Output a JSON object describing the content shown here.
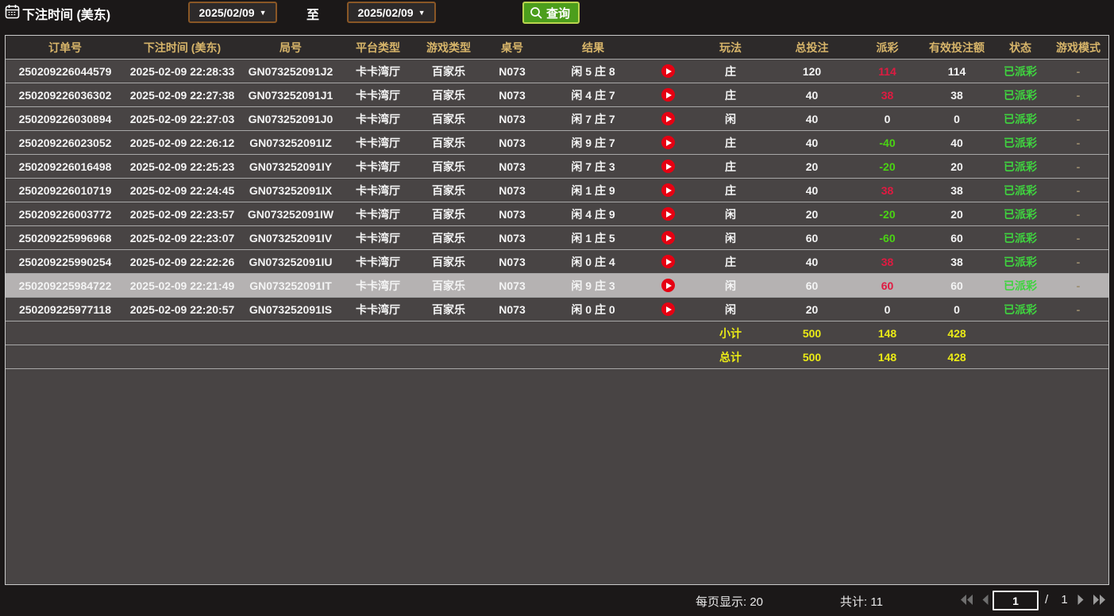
{
  "toolbar": {
    "label": "下注时间 (美东)",
    "date_from": "2025/02/09",
    "to_label": "至",
    "date_to": "2025/02/09",
    "search_label": "查询"
  },
  "table": {
    "headers": [
      "订单号",
      "下注时间 (美东)",
      "局号",
      "平台类型",
      "游戏类型",
      "桌号",
      "结果",
      "",
      "玩法",
      "总投注",
      "派彩",
      "有效投注额",
      "状态",
      "游戏模式"
    ],
    "rows": [
      {
        "order": "250209226044579",
        "time": "2025-02-09 22:28:33",
        "game_no": "GN073252091J2",
        "platform": "卡卡湾厅",
        "game_type": "百家乐",
        "table_no": "N073",
        "result": "闲 5 庄 8",
        "method": "庄",
        "total_bet": "120",
        "payout": "114",
        "payout_tone": "win",
        "valid_bet": "114",
        "status": "已派彩",
        "mode": "-",
        "highlight": false
      },
      {
        "order": "250209226036302",
        "time": "2025-02-09 22:27:38",
        "game_no": "GN073252091J1",
        "platform": "卡卡湾厅",
        "game_type": "百家乐",
        "table_no": "N073",
        "result": "闲 4 庄 7",
        "method": "庄",
        "total_bet": "40",
        "payout": "38",
        "payout_tone": "win",
        "valid_bet": "38",
        "status": "已派彩",
        "mode": "-",
        "highlight": false
      },
      {
        "order": "250209226030894",
        "time": "2025-02-09 22:27:03",
        "game_no": "GN073252091J0",
        "platform": "卡卡湾厅",
        "game_type": "百家乐",
        "table_no": "N073",
        "result": "闲 7 庄 7",
        "method": "闲",
        "total_bet": "40",
        "payout": "0",
        "payout_tone": "even",
        "valid_bet": "0",
        "status": "已派彩",
        "mode": "-",
        "highlight": false
      },
      {
        "order": "250209226023052",
        "time": "2025-02-09 22:26:12",
        "game_no": "GN073252091IZ",
        "platform": "卡卡湾厅",
        "game_type": "百家乐",
        "table_no": "N073",
        "result": "闲 9 庄 7",
        "method": "庄",
        "total_bet": "40",
        "payout": "-40",
        "payout_tone": "loss",
        "valid_bet": "40",
        "status": "已派彩",
        "mode": "-",
        "highlight": false
      },
      {
        "order": "250209226016498",
        "time": "2025-02-09 22:25:23",
        "game_no": "GN073252091IY",
        "platform": "卡卡湾厅",
        "game_type": "百家乐",
        "table_no": "N073",
        "result": "闲 7 庄 3",
        "method": "庄",
        "total_bet": "20",
        "payout": "-20",
        "payout_tone": "loss",
        "valid_bet": "20",
        "status": "已派彩",
        "mode": "-",
        "highlight": false
      },
      {
        "order": "250209226010719",
        "time": "2025-02-09 22:24:45",
        "game_no": "GN073252091IX",
        "platform": "卡卡湾厅",
        "game_type": "百家乐",
        "table_no": "N073",
        "result": "闲 1 庄 9",
        "method": "庄",
        "total_bet": "40",
        "payout": "38",
        "payout_tone": "win",
        "valid_bet": "38",
        "status": "已派彩",
        "mode": "-",
        "highlight": false
      },
      {
        "order": "250209226003772",
        "time": "2025-02-09 22:23:57",
        "game_no": "GN073252091IW",
        "platform": "卡卡湾厅",
        "game_type": "百家乐",
        "table_no": "N073",
        "result": "闲 4 庄 9",
        "method": "闲",
        "total_bet": "20",
        "payout": "-20",
        "payout_tone": "loss",
        "valid_bet": "20",
        "status": "已派彩",
        "mode": "-",
        "highlight": false
      },
      {
        "order": "250209225996968",
        "time": "2025-02-09 22:23:07",
        "game_no": "GN073252091IV",
        "platform": "卡卡湾厅",
        "game_type": "百家乐",
        "table_no": "N073",
        "result": "闲 1 庄 5",
        "method": "闲",
        "total_bet": "60",
        "payout": "-60",
        "payout_tone": "loss",
        "valid_bet": "60",
        "status": "已派彩",
        "mode": "-",
        "highlight": false
      },
      {
        "order": "250209225990254",
        "time": "2025-02-09 22:22:26",
        "game_no": "GN073252091IU",
        "platform": "卡卡湾厅",
        "game_type": "百家乐",
        "table_no": "N073",
        "result": "闲 0 庄 4",
        "method": "庄",
        "total_bet": "40",
        "payout": "38",
        "payout_tone": "win",
        "valid_bet": "38",
        "status": "已派彩",
        "mode": "-",
        "highlight": false
      },
      {
        "order": "250209225984722",
        "time": "2025-02-09 22:21:49",
        "game_no": "GN073252091IT",
        "platform": "卡卡湾厅",
        "game_type": "百家乐",
        "table_no": "N073",
        "result": "闲 9 庄 3",
        "method": "闲",
        "total_bet": "60",
        "payout": "60",
        "payout_tone": "win",
        "valid_bet": "60",
        "status": "已派彩",
        "mode": "-",
        "highlight": true
      },
      {
        "order": "250209225977118",
        "time": "2025-02-09 22:20:57",
        "game_no": "GN073252091IS",
        "platform": "卡卡湾厅",
        "game_type": "百家乐",
        "table_no": "N073",
        "result": "闲 0 庄 0",
        "method": "闲",
        "total_bet": "20",
        "payout": "0",
        "payout_tone": "even",
        "valid_bet": "0",
        "status": "已派彩",
        "mode": "-",
        "highlight": false
      }
    ],
    "subtotal": {
      "label": "小计",
      "total_bet": "500",
      "payout": "148",
      "valid_bet": "428"
    },
    "total": {
      "label": "总计",
      "total_bet": "500",
      "payout": "148",
      "valid_bet": "428"
    }
  },
  "footer": {
    "per_page_label": "每页显示: 20",
    "total_count_label": "共计: 11",
    "page_value": "1",
    "page_count_label": "/ 1"
  },
  "colors": {
    "header_text": "#d7b56a",
    "payout_win_red": "#e01a41",
    "payout_loss_green": "#4ad413",
    "status_green": "#3fd43f",
    "totals_yellow": "#ebeb16",
    "highlight_row": "#b5b2b2",
    "search_button_green": "#4c9e1c",
    "date_border_brown": "#8a5726"
  }
}
